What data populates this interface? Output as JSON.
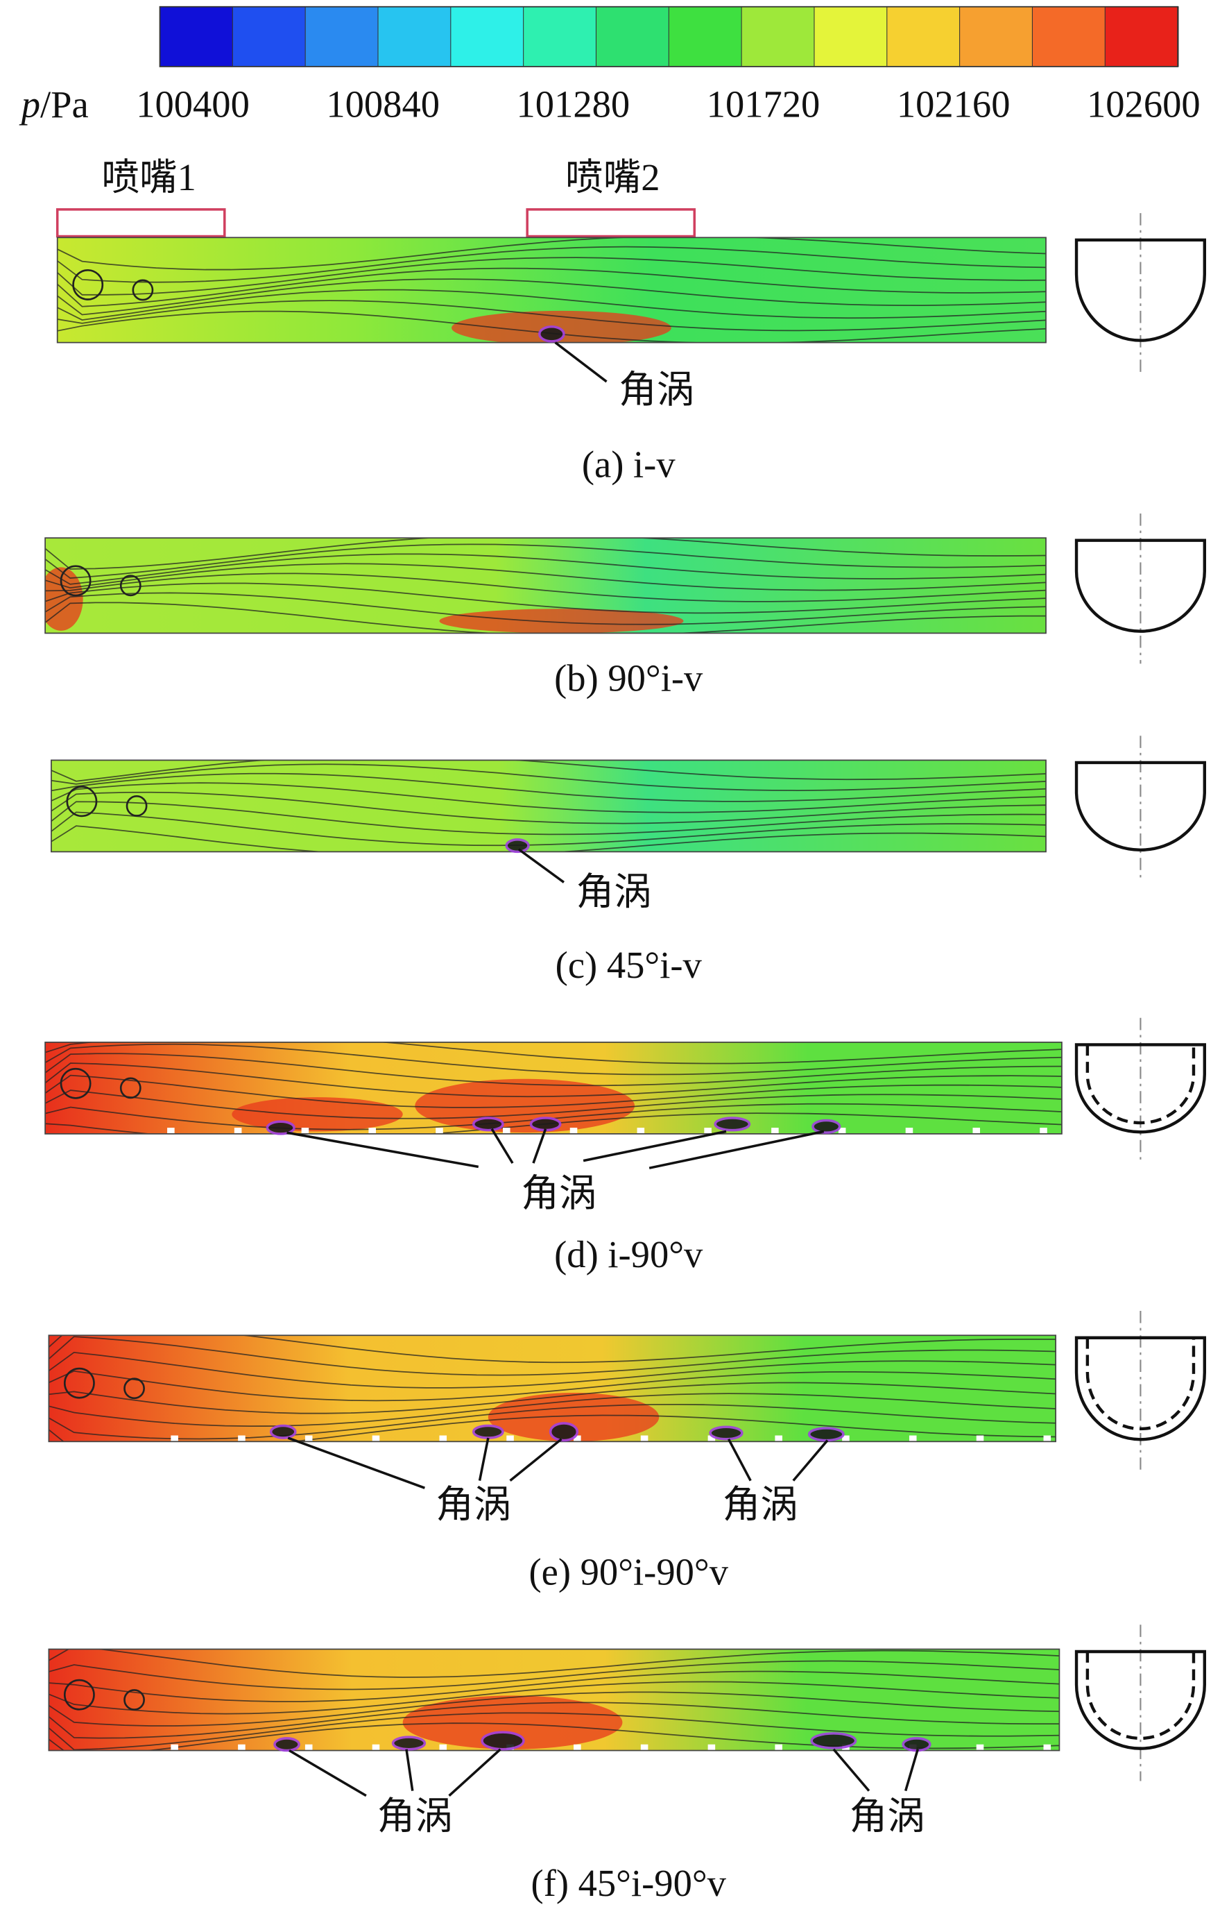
{
  "colorbar": {
    "label_var": "p",
    "label_unit": "/Pa",
    "ticks": [
      "100400",
      "100840",
      "101280",
      "101720",
      "102160",
      "102600"
    ],
    "colors": [
      "#1010d8",
      "#1f4ff0",
      "#2a8af0",
      "#27c4f0",
      "#2ef0e8",
      "#2ef0b0",
      "#2ee070",
      "#3ee040",
      "#9ee83a",
      "#e4f43a",
      "#f6d030",
      "#f6a030",
      "#f46a28",
      "#e8221a"
    ]
  },
  "nozzles": [
    "喷嘴1",
    "喷嘴2"
  ],
  "panels": [
    {
      "caption": "(a) i-v",
      "labels": [
        "角涡"
      ]
    },
    {
      "caption": "(b) 90°i-v",
      "labels": []
    },
    {
      "caption": "(c) 45°i-v",
      "labels": [
        "角涡"
      ]
    },
    {
      "caption": "(d) i-90°v",
      "labels": [
        "角涡"
      ]
    },
    {
      "caption": "(e) 90°i-90°v",
      "labels": [
        "角涡",
        "角涡"
      ]
    },
    {
      "caption": "(f) 45°i-90°v",
      "labels": [
        "角涡",
        "角涡"
      ]
    }
  ]
}
